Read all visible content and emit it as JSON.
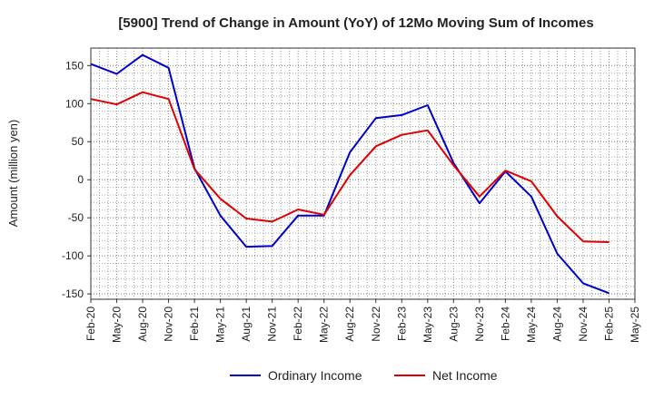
{
  "chart_data": {
    "type": "line",
    "title": "[5900]  Trend of Change in Amount (YoY) of 12Mo Moving Sum of Incomes",
    "xlabel": "",
    "ylabel": "Amount (million yen)",
    "ylim": [
      -157,
      173
    ],
    "yticks": [
      -150,
      -100,
      -50,
      0,
      50,
      100,
      150
    ],
    "categories": [
      "Feb-20",
      "May-20",
      "Aug-20",
      "Nov-20",
      "Feb-21",
      "May-21",
      "Aug-21",
      "Nov-21",
      "Feb-22",
      "May-22",
      "Aug-22",
      "Nov-22",
      "Feb-23",
      "May-23",
      "Aug-23",
      "Nov-23",
      "Feb-24",
      "May-24",
      "Aug-24",
      "Nov-24",
      "Feb-25",
      "May-25"
    ],
    "grid": true,
    "legend_position": "bottom",
    "series": [
      {
        "name": "Ordinary Income",
        "color": "#0000cc",
        "values": [
          152,
          139,
          164,
          147,
          15,
          -47,
          -88,
          -87,
          -47,
          -47,
          36,
          81,
          85,
          98,
          22,
          -31,
          11,
          -22,
          -97,
          -136,
          -149,
          null
        ]
      },
      {
        "name": "Net Income",
        "color": "#dd0000",
        "values": [
          106,
          99,
          115,
          106,
          14,
          -25,
          -51,
          -55,
          -39,
          -46,
          6,
          44,
          59,
          65,
          19,
          -22,
          12,
          -2,
          -48,
          -81,
          -82,
          null
        ]
      }
    ]
  }
}
